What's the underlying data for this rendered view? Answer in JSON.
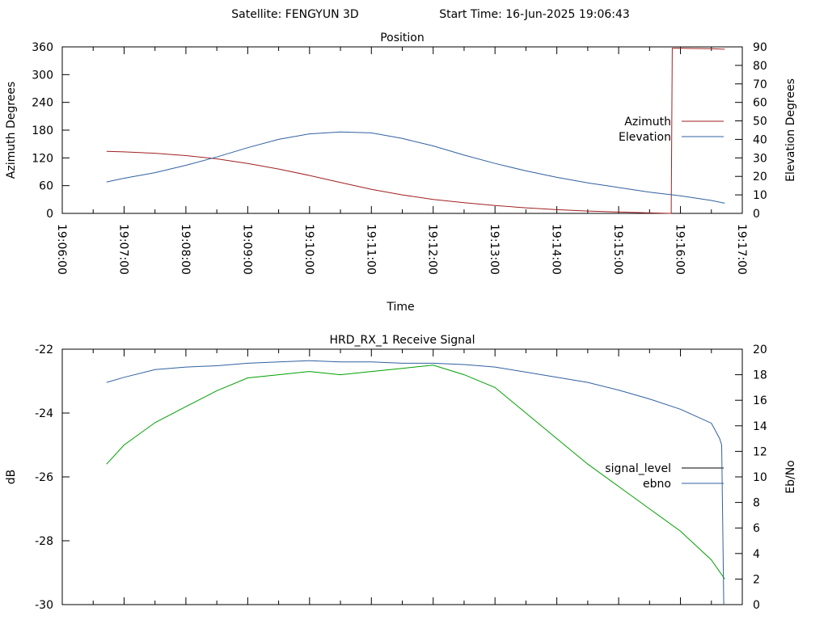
{
  "header": {
    "satellite_label": "Satellite: FENGYUN 3D",
    "start_time_label": "Start Time: 16-Jun-2025 19:06:43"
  },
  "colors": {
    "azimuth": "#a02020",
    "elevation": "#3060a0",
    "signal_level": "#00a000",
    "ebno": "#3060a0",
    "legend_signal_level": "#000000"
  },
  "chart_data": [
    {
      "type": "line",
      "title": "Position",
      "xlabel": "Time",
      "ylabel": "Azimuth Degrees",
      "y2label": "Elevation Degrees",
      "xlim": [
        "19:06:00",
        "19:17:00"
      ],
      "ylim": [
        0,
        360
      ],
      "y2lim": [
        0,
        90
      ],
      "x_ticks": [
        "19:06:00",
        "19:07:00",
        "19:08:00",
        "19:09:00",
        "19:10:00",
        "19:11:00",
        "19:12:00",
        "19:13:00",
        "19:14:00",
        "19:15:00",
        "19:16:00",
        "19:17:00"
      ],
      "y_ticks": [
        "0",
        "60",
        "120",
        "180",
        "240",
        "300",
        "360"
      ],
      "y2_ticks": [
        "0",
        "10",
        "20",
        "30",
        "40",
        "50",
        "60",
        "70",
        "80",
        "90"
      ],
      "legend_position": "right",
      "series": [
        {
          "name": "Azimuth",
          "axis": "y",
          "x": [
            "19:06:43",
            "19:07:00",
            "19:07:30",
            "19:08:00",
            "19:08:30",
            "19:09:00",
            "19:09:30",
            "19:10:00",
            "19:10:30",
            "19:11:00",
            "19:11:30",
            "19:12:00",
            "19:12:30",
            "19:13:00",
            "19:13:30",
            "19:14:00",
            "19:14:30",
            "19:15:00",
            "19:15:30",
            "19:15:50",
            "19:15:51",
            "19:15:52",
            "19:16:00",
            "19:16:30",
            "19:16:43"
          ],
          "y": [
            134,
            133,
            130,
            125,
            118,
            108,
            96,
            82,
            67,
            52,
            40,
            30,
            23,
            17,
            12,
            8,
            5,
            3,
            1,
            0,
            0,
            357,
            357,
            356,
            355
          ]
        },
        {
          "name": "Elevation",
          "axis": "y2",
          "x": [
            "19:06:43",
            "19:07:00",
            "19:07:30",
            "19:08:00",
            "19:08:30",
            "19:09:00",
            "19:09:30",
            "19:10:00",
            "19:10:30",
            "19:11:00",
            "19:11:30",
            "19:12:00",
            "19:12:30",
            "19:13:00",
            "19:13:30",
            "19:14:00",
            "19:14:30",
            "19:15:00",
            "19:15:30",
            "19:16:00",
            "19:16:30",
            "19:16:43"
          ],
          "y": [
            17,
            19,
            22,
            26,
            30.5,
            35.5,
            40,
            43,
            44,
            43.5,
            40.5,
            36.5,
            31.5,
            27,
            23,
            19.5,
            16.5,
            14,
            11.5,
            9.5,
            7,
            5.5
          ]
        }
      ]
    },
    {
      "type": "line",
      "title": "HRD_RX_1 Receive Signal",
      "xlabel": "",
      "ylabel": "dB",
      "y2label": "Eb/No",
      "xlim": [
        "19:06:00",
        "19:17:00"
      ],
      "ylim": [
        -30,
        -22
      ],
      "y2lim": [
        0,
        20
      ],
      "y_ticks": [
        "-22",
        "-24",
        "-26",
        "-28",
        "-30"
      ],
      "y2_ticks": [
        "0",
        "2",
        "4",
        "6",
        "8",
        "10",
        "12",
        "14",
        "16",
        "18",
        "20"
      ],
      "legend_position": "right",
      "series": [
        {
          "name": "signal_level",
          "axis": "y",
          "x": [
            "19:06:43",
            "19:07:00",
            "19:07:30",
            "19:08:00",
            "19:08:30",
            "19:09:00",
            "19:09:30",
            "19:10:00",
            "19:10:30",
            "19:11:00",
            "19:11:30",
            "19:12:00",
            "19:12:30",
            "19:13:00",
            "19:13:30",
            "19:14:00",
            "19:14:30",
            "19:15:00",
            "19:15:30",
            "19:16:00",
            "19:16:30",
            "19:16:43"
          ],
          "y": [
            -25.6,
            -25.0,
            -24.3,
            -23.8,
            -23.3,
            -22.9,
            -22.8,
            -22.7,
            -22.8,
            -22.7,
            -22.6,
            -22.5,
            -22.8,
            -23.2,
            -24.0,
            -24.8,
            -25.6,
            -26.3,
            -27.0,
            -27.7,
            -28.6,
            -29.2
          ]
        },
        {
          "name": "ebno",
          "axis": "y2",
          "x": [
            "19:06:43",
            "19:07:00",
            "19:07:30",
            "19:08:00",
            "19:08:30",
            "19:09:00",
            "19:09:30",
            "19:10:00",
            "19:10:30",
            "19:11:00",
            "19:11:30",
            "19:12:00",
            "19:12:30",
            "19:13:00",
            "19:13:30",
            "19:14:00",
            "19:14:30",
            "19:15:00",
            "19:15:30",
            "19:16:00",
            "19:16:30",
            "19:16:38",
            "19:16:40",
            "19:16:42"
          ],
          "y": [
            17.4,
            17.8,
            18.4,
            18.6,
            18.7,
            18.9,
            19.0,
            19.1,
            19.0,
            19.0,
            18.9,
            18.9,
            18.8,
            18.6,
            18.2,
            17.8,
            17.4,
            16.8,
            16.1,
            15.3,
            14.2,
            13.0,
            12.5,
            0
          ]
        }
      ]
    }
  ]
}
